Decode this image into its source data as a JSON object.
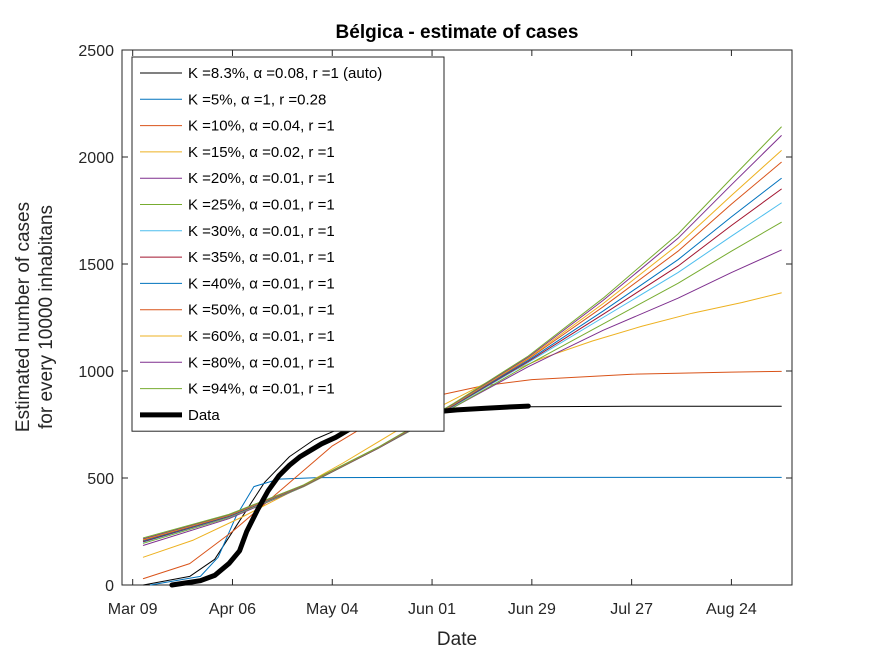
{
  "chart_data": {
    "type": "line",
    "title": "Bélgica - estimate of cases",
    "xlabel": "Date",
    "ylabel_line1": "Estimated number of cases",
    "ylabel_line2": "for every 10000 inhabitans",
    "xlim": [
      "2020-03-06",
      "2020-09-10"
    ],
    "ylim": [
      0,
      2500
    ],
    "x_ticks": [
      {
        "date": "2020-03-09",
        "label": "Mar 09"
      },
      {
        "date": "2020-04-06",
        "label": "Apr 06"
      },
      {
        "date": "2020-05-04",
        "label": "May 04"
      },
      {
        "date": "2020-06-01",
        "label": "Jun 01"
      },
      {
        "date": "2020-06-29",
        "label": "Jun 29"
      },
      {
        "date": "2020-07-27",
        "label": "Jul 27"
      },
      {
        "date": "2020-08-24",
        "label": "Aug 24"
      }
    ],
    "y_ticks": [
      0,
      500,
      1000,
      1500,
      2000,
      2500
    ],
    "grid": false,
    "legend_position": "top-left",
    "series": [
      {
        "name": "K =8.3%, α =0.08, r =1 (auto)",
        "color": "#000000",
        "width": 1,
        "points": [
          [
            "2020-03-12",
            0
          ],
          [
            "2020-03-25",
            40
          ],
          [
            "2020-04-01",
            120
          ],
          [
            "2020-04-08",
            300
          ],
          [
            "2020-04-15",
            480
          ],
          [
            "2020-04-22",
            600
          ],
          [
            "2020-04-29",
            680
          ],
          [
            "2020-05-06",
            730
          ],
          [
            "2020-05-16",
            780
          ],
          [
            "2020-05-26",
            810
          ],
          [
            "2020-06-08",
            825
          ],
          [
            "2020-06-29",
            833
          ],
          [
            "2020-07-27",
            835
          ],
          [
            "2020-09-07",
            835
          ]
        ]
      },
      {
        "name": "K =5%, α =1, r =0.28",
        "color": "#0072BD",
        "width": 1,
        "points": [
          [
            "2020-03-14",
            0
          ],
          [
            "2020-03-28",
            40
          ],
          [
            "2020-04-02",
            130
          ],
          [
            "2020-04-07",
            320
          ],
          [
            "2020-04-12",
            460
          ],
          [
            "2020-04-19",
            495
          ],
          [
            "2020-04-30",
            502
          ],
          [
            "2020-06-01",
            503
          ],
          [
            "2020-09-07",
            503
          ]
        ]
      },
      {
        "name": "K =10%, α =0.04, r =1",
        "color": "#D95319",
        "width": 1,
        "points": [
          [
            "2020-03-12",
            30
          ],
          [
            "2020-03-25",
            100
          ],
          [
            "2020-04-06",
            250
          ],
          [
            "2020-04-20",
            450
          ],
          [
            "2020-05-04",
            650
          ],
          [
            "2020-05-18",
            790
          ],
          [
            "2020-06-01",
            880
          ],
          [
            "2020-06-15",
            930
          ],
          [
            "2020-06-29",
            960
          ],
          [
            "2020-07-27",
            985
          ],
          [
            "2020-08-24",
            995
          ],
          [
            "2020-09-07",
            998
          ]
        ]
      },
      {
        "name": "K =15%, α =0.02, r =1",
        "color": "#EDB120",
        "width": 1,
        "points": [
          [
            "2020-03-12",
            130
          ],
          [
            "2020-03-26",
            210
          ],
          [
            "2020-04-09",
            320
          ],
          [
            "2020-04-23",
            440
          ],
          [
            "2020-05-07",
            570
          ],
          [
            "2020-05-21",
            710
          ],
          [
            "2020-06-04",
            840
          ],
          [
            "2020-06-18",
            960
          ],
          [
            "2020-07-02",
            1060
          ],
          [
            "2020-07-16",
            1140
          ],
          [
            "2020-07-30",
            1210
          ],
          [
            "2020-08-13",
            1270
          ],
          [
            "2020-08-27",
            1320
          ],
          [
            "2020-09-07",
            1365
          ]
        ]
      },
      {
        "name": "K =20%, α =0.01, r =1",
        "color": "#7E2F8E",
        "width": 1,
        "points": [
          [
            "2020-03-12",
            185
          ],
          [
            "2020-04-05",
            310
          ],
          [
            "2020-04-26",
            460
          ],
          [
            "2020-05-17",
            640
          ],
          [
            "2020-06-07",
            830
          ],
          [
            "2020-06-28",
            1020
          ],
          [
            "2020-07-19",
            1190
          ],
          [
            "2020-08-09",
            1340
          ],
          [
            "2020-08-24",
            1460
          ],
          [
            "2020-09-07",
            1565
          ]
        ]
      },
      {
        "name": "K =25%, α =0.01, r =1",
        "color": "#77AC30",
        "width": 1,
        "points": [
          [
            "2020-03-12",
            195
          ],
          [
            "2020-04-05",
            315
          ],
          [
            "2020-04-26",
            460
          ],
          [
            "2020-05-17",
            640
          ],
          [
            "2020-06-07",
            830
          ],
          [
            "2020-06-28",
            1030
          ],
          [
            "2020-07-19",
            1220
          ],
          [
            "2020-08-09",
            1410
          ],
          [
            "2020-08-24",
            1560
          ],
          [
            "2020-09-07",
            1695
          ]
        ]
      },
      {
        "name": "K =30%, α =0.01, r =1",
        "color": "#4DBEEE",
        "width": 1,
        "points": [
          [
            "2020-03-12",
            200
          ],
          [
            "2020-04-05",
            318
          ],
          [
            "2020-04-26",
            462
          ],
          [
            "2020-05-17",
            640
          ],
          [
            "2020-06-07",
            835
          ],
          [
            "2020-06-28",
            1040
          ],
          [
            "2020-07-19",
            1250
          ],
          [
            "2020-08-09",
            1460
          ],
          [
            "2020-08-24",
            1630
          ],
          [
            "2020-09-07",
            1785
          ]
        ]
      },
      {
        "name": "K =35%, α =0.01, r =1",
        "color": "#A2142F",
        "width": 1,
        "points": [
          [
            "2020-03-12",
            203
          ],
          [
            "2020-04-05",
            320
          ],
          [
            "2020-04-26",
            463
          ],
          [
            "2020-05-17",
            640
          ],
          [
            "2020-06-07",
            838
          ],
          [
            "2020-06-28",
            1045
          ],
          [
            "2020-07-19",
            1265
          ],
          [
            "2020-08-09",
            1490
          ],
          [
            "2020-08-24",
            1680
          ],
          [
            "2020-09-07",
            1850
          ]
        ]
      },
      {
        "name": "K =40%, α =0.01, r =1",
        "color": "#0072BD",
        "width": 1,
        "points": [
          [
            "2020-03-12",
            206
          ],
          [
            "2020-04-05",
            322
          ],
          [
            "2020-04-26",
            464
          ],
          [
            "2020-05-17",
            641
          ],
          [
            "2020-06-07",
            840
          ],
          [
            "2020-06-28",
            1050
          ],
          [
            "2020-07-19",
            1280
          ],
          [
            "2020-08-09",
            1520
          ],
          [
            "2020-08-24",
            1720
          ],
          [
            "2020-09-07",
            1900
          ]
        ]
      },
      {
        "name": "K =50%, α =0.01, r =1",
        "color": "#D95319",
        "width": 1,
        "points": [
          [
            "2020-03-12",
            210
          ],
          [
            "2020-04-05",
            324
          ],
          [
            "2020-04-26",
            465
          ],
          [
            "2020-05-17",
            642
          ],
          [
            "2020-06-07",
            842
          ],
          [
            "2020-06-28",
            1056
          ],
          [
            "2020-07-19",
            1300
          ],
          [
            "2020-08-09",
            1560
          ],
          [
            "2020-08-24",
            1780
          ],
          [
            "2020-09-07",
            1975
          ]
        ]
      },
      {
        "name": "K =60%, α =0.01, r =1",
        "color": "#EDB120",
        "width": 1,
        "points": [
          [
            "2020-03-12",
            213
          ],
          [
            "2020-04-05",
            326
          ],
          [
            "2020-04-26",
            466
          ],
          [
            "2020-05-17",
            643
          ],
          [
            "2020-06-07",
            844
          ],
          [
            "2020-06-28",
            1060
          ],
          [
            "2020-07-19",
            1315
          ],
          [
            "2020-08-09",
            1590
          ],
          [
            "2020-08-24",
            1820
          ],
          [
            "2020-09-07",
            2030
          ]
        ]
      },
      {
        "name": "K =80%, α =0.01, r =1",
        "color": "#7E2F8E",
        "width": 1,
        "points": [
          [
            "2020-03-12",
            216
          ],
          [
            "2020-04-05",
            328
          ],
          [
            "2020-04-26",
            467
          ],
          [
            "2020-05-17",
            644
          ],
          [
            "2020-06-07",
            846
          ],
          [
            "2020-06-28",
            1065
          ],
          [
            "2020-07-19",
            1330
          ],
          [
            "2020-08-09",
            1620
          ],
          [
            "2020-08-24",
            1870
          ],
          [
            "2020-09-07",
            2100
          ]
        ]
      },
      {
        "name": "K =94%, α =0.01, r =1",
        "color": "#77AC30",
        "width": 1,
        "points": [
          [
            "2020-03-12",
            220
          ],
          [
            "2020-04-05",
            330
          ],
          [
            "2020-04-26",
            468
          ],
          [
            "2020-05-17",
            645
          ],
          [
            "2020-06-07",
            848
          ],
          [
            "2020-06-28",
            1070
          ],
          [
            "2020-07-19",
            1340
          ],
          [
            "2020-08-09",
            1640
          ],
          [
            "2020-08-24",
            1900
          ],
          [
            "2020-09-07",
            2140
          ]
        ]
      },
      {
        "name": "Data",
        "color": "#000000",
        "width": 5,
        "points": [
          [
            "2020-03-20",
            0
          ],
          [
            "2020-03-24",
            10
          ],
          [
            "2020-03-28",
            20
          ],
          [
            "2020-04-01",
            45
          ],
          [
            "2020-04-05",
            100
          ],
          [
            "2020-04-08",
            160
          ],
          [
            "2020-04-10",
            250
          ],
          [
            "2020-04-13",
            350
          ],
          [
            "2020-04-16",
            440
          ],
          [
            "2020-04-19",
            510
          ],
          [
            "2020-04-22",
            560
          ],
          [
            "2020-04-25",
            600
          ],
          [
            "2020-04-28",
            630
          ],
          [
            "2020-05-01",
            660
          ],
          [
            "2020-05-05",
            690
          ],
          [
            "2020-05-09",
            730
          ],
          [
            "2020-05-13",
            750
          ],
          [
            "2020-05-18",
            770
          ],
          [
            "2020-05-24",
            790
          ],
          [
            "2020-05-30",
            805
          ],
          [
            "2020-06-08",
            818
          ],
          [
            "2020-06-16",
            826
          ],
          [
            "2020-06-24",
            833
          ],
          [
            "2020-06-28",
            836
          ]
        ]
      }
    ]
  }
}
